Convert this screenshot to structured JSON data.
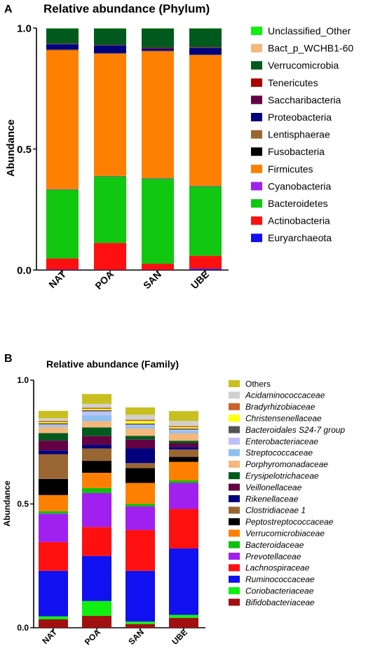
{
  "chart_data": [
    {
      "panel_label": "A",
      "type": "bar",
      "stacked": true,
      "title": "Relative abundance (Phylum)",
      "xlabel": "",
      "ylabel": "Abundance",
      "ylim": [
        0,
        1
      ],
      "yticks": [
        "0.0",
        "0.5",
        "1.0"
      ],
      "categories": [
        "NAT",
        "POA",
        "SAN",
        "UBE"
      ],
      "legend_position": "right",
      "series": [
        {
          "name": "Euryarchaeota",
          "color": "#1010f0",
          "values": [
            0.002,
            0.001,
            0.001,
            0.005
          ]
        },
        {
          "name": "Actinobacteria",
          "color": "#ff1010",
          "values": [
            0.046,
            0.111,
            0.025,
            0.054
          ]
        },
        {
          "name": "Bacteroidetes",
          "color": "#10c810",
          "values": [
            0.284,
            0.275,
            0.352,
            0.287
          ]
        },
        {
          "name": "Cyanobacteria",
          "color": "#a020f0",
          "values": [
            0.002,
            0.002,
            0.002,
            0.002
          ]
        },
        {
          "name": "Firmicutes",
          "color": "#ff8000",
          "values": [
            0.575,
            0.505,
            0.524,
            0.54
          ]
        },
        {
          "name": "Fusobacteria",
          "color": "#000000",
          "values": [
            0.001,
            0.001,
            0.001,
            0.001
          ]
        },
        {
          "name": "Lentisphaerae",
          "color": "#996633",
          "values": [
            0.001,
            0.001,
            0.001,
            0.001
          ]
        },
        {
          "name": "Proteobacteria",
          "color": "#00007f",
          "values": [
            0.022,
            0.032,
            0.009,
            0.028
          ]
        },
        {
          "name": "Saccharibacteria",
          "color": "#660044",
          "values": [
            0.001,
            0.001,
            0.001,
            0.001
          ]
        },
        {
          "name": "Tenericutes",
          "color": "#aa0000",
          "values": [
            0.001,
            0.001,
            0.003,
            0.002
          ]
        },
        {
          "name": "Verrucomicrobia",
          "color": "#005a1e",
          "values": [
            0.063,
            0.068,
            0.079,
            0.077
          ]
        },
        {
          "name": "Bact_p_WCHB1-60",
          "color": "#f4b77c",
          "values": [
            0.001,
            0.001,
            0.001,
            0.001
          ]
        },
        {
          "name": "Unclassified_Other",
          "color": "#10f010",
          "values": [
            0.001,
            0.001,
            0.001,
            0.001
          ]
        }
      ]
    },
    {
      "panel_label": "B",
      "type": "bar",
      "stacked": true,
      "title": "Relative abundance (Family)",
      "xlabel": "",
      "ylabel": "Abundance",
      "ylim": [
        0,
        1
      ],
      "yticks": [
        "0.0",
        "0.5",
        "1.0"
      ],
      "categories": [
        "NAT",
        "POA",
        "SAN",
        "UBE"
      ],
      "legend_position": "right",
      "series": [
        {
          "name": "Bifidobacteriaceae",
          "color": "#a01010",
          "values": [
            0.034,
            0.048,
            0.015,
            0.04
          ]
        },
        {
          "name": "Coriobacteriaceae",
          "color": "#10f010",
          "values": [
            0.012,
            0.06,
            0.01,
            0.012
          ]
        },
        {
          "name": "Ruminococcaceae",
          "color": "#1010f0",
          "values": [
            0.184,
            0.182,
            0.205,
            0.268
          ]
        },
        {
          "name": "Lachnospiraceae",
          "color": "#ff1010",
          "values": [
            0.116,
            0.117,
            0.165,
            0.16
          ]
        },
        {
          "name": "Prevotellaceae",
          "color": "#a020f0",
          "values": [
            0.115,
            0.137,
            0.095,
            0.105
          ]
        },
        {
          "name": "Bacteroidaceae",
          "color": "#10c010",
          "values": [
            0.01,
            0.02,
            0.01,
            0.01
          ]
        },
        {
          "name": "Verrucomicrobiaceae",
          "color": "#ff8000",
          "values": [
            0.065,
            0.062,
            0.085,
            0.075
          ]
        },
        {
          "name": "Peptostreptococcaceae",
          "color": "#000000",
          "values": [
            0.065,
            0.048,
            0.06,
            0.02
          ]
        },
        {
          "name": "Clostridiaceae 1",
          "color": "#996633",
          "values": [
            0.1,
            0.05,
            0.02,
            0.03
          ]
        },
        {
          "name": "Rikenellaceae",
          "color": "#00007f",
          "values": [
            0.015,
            0.015,
            0.06,
            0.01
          ]
        },
        {
          "name": "Veillonellaceae",
          "color": "#660044",
          "values": [
            0.04,
            0.035,
            0.035,
            0.015
          ]
        },
        {
          "name": "Erysipelotrichaceae",
          "color": "#005a1e",
          "values": [
            0.03,
            0.035,
            0.015,
            0.01
          ]
        },
        {
          "name": "Porphyromonadaceae",
          "color": "#f4b77c",
          "values": [
            0.025,
            0.025,
            0.03,
            0.03
          ]
        },
        {
          "name": "Streptococcaceae",
          "color": "#8ec0f0",
          "values": [
            0.005,
            0.025,
            0.01,
            0.01
          ]
        },
        {
          "name": "Enterobacteriaceae",
          "color": "#c0c0f8",
          "values": [
            0.005,
            0.015,
            0.005,
            0.005
          ]
        },
        {
          "name": "Bacteroidales S24-7 group",
          "color": "#555555",
          "values": [
            0.005,
            0.005,
            0.005,
            0.005
          ]
        },
        {
          "name": "Christensenellaceae",
          "color": "#ffff10",
          "values": [
            0.005,
            0.005,
            0.01,
            0.005
          ]
        },
        {
          "name": "Bradyrhizobiaceae",
          "color": "#c86428",
          "values": [
            0.005,
            0.005,
            0.005,
            0.005
          ]
        },
        {
          "name": "Acidaminococcaceae",
          "color": "#d0d0d0",
          "values": [
            0.01,
            0.015,
            0.02,
            0.02
          ]
        },
        {
          "name": "Others",
          "color": "#c8c020",
          "values": [
            0.03,
            0.04,
            0.03,
            0.04
          ]
        }
      ]
    }
  ]
}
